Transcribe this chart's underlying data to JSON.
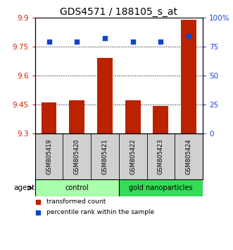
{
  "title": "GDS4571 / 188105_s_at",
  "samples": [
    "GSM805419",
    "GSM805420",
    "GSM805421",
    "GSM805422",
    "GSM805423",
    "GSM805424"
  ],
  "bar_values": [
    9.46,
    9.47,
    9.69,
    9.47,
    9.44,
    9.89
  ],
  "percentile_values": [
    79,
    79,
    82,
    79,
    79,
    84
  ],
  "ylim_left": [
    9.3,
    9.9
  ],
  "ylim_right": [
    0,
    100
  ],
  "yticks_left": [
    9.3,
    9.45,
    9.6,
    9.75,
    9.9
  ],
  "yticks_right": [
    0,
    25,
    50,
    75,
    100
  ],
  "ytick_labels_left": [
    "9.3",
    "9.45",
    "9.6",
    "9.75",
    "9.9"
  ],
  "ytick_labels_right": [
    "0",
    "25",
    "50",
    "75",
    "100%"
  ],
  "hlines": [
    9.45,
    9.6,
    9.75
  ],
  "bar_color": "#bb2200",
  "dot_color": "#1144cc",
  "bar_bottom": 9.3,
  "groups": [
    {
      "label": "control",
      "indices": [
        0,
        1,
        2
      ],
      "color": "#aaffaa"
    },
    {
      "label": "gold nanoparticles",
      "indices": [
        3,
        4,
        5
      ],
      "color": "#33dd55"
    }
  ],
  "agent_label": "agent",
  "legend_items": [
    {
      "color": "#bb2200",
      "label": "transformed count"
    },
    {
      "color": "#1144cc",
      "label": "percentile rank within the sample"
    }
  ],
  "background_color": "#ffffff",
  "plot_bg": "#ffffff",
  "title_fontsize": 10
}
